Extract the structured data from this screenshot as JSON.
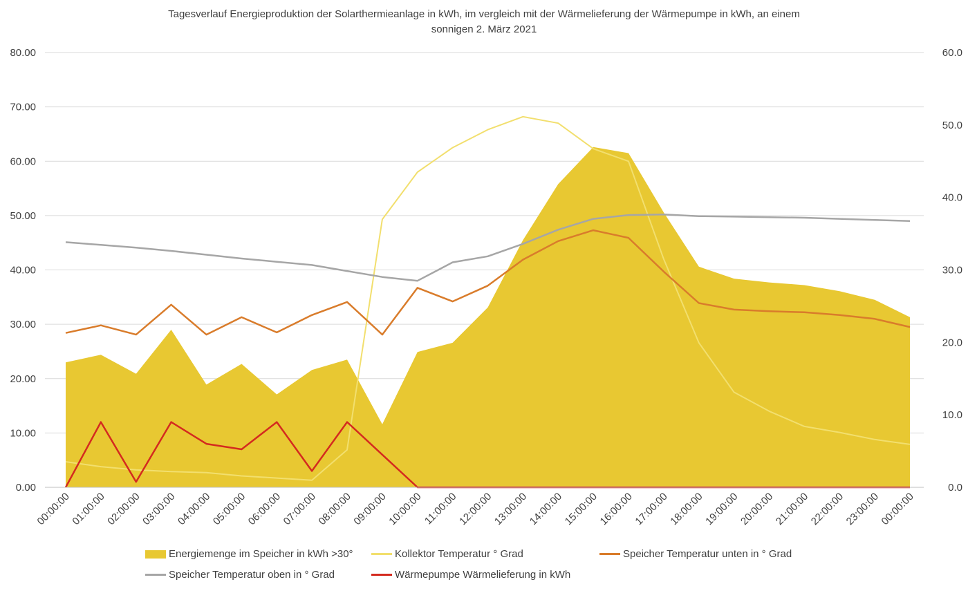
{
  "chart_data": {
    "type": "area",
    "title_lines": [
      "Tagesverlauf Energieproduktion der Solarthermieanlage in kWh, im vergleich mit der Wärmelieferung der Wärmepumpe in kWh, an einem",
      "sonnigen 2. März 2021"
    ],
    "categories": [
      "00:00:00",
      "01:00:00",
      "02:00:00",
      "03:00:00",
      "04:00:00",
      "05:00:00",
      "06:00:00",
      "07:00:00",
      "08:00:00",
      "09:00:00",
      "10:00:00",
      "11:00:00",
      "12:00:00",
      "13:00:00",
      "14:00:00",
      "15:00:00",
      "16:00:00",
      "17:00:00",
      "18:00:00",
      "19:00:00",
      "20:00:00",
      "21:00:00",
      "22:00:00",
      "23:00:00",
      "00:00:00"
    ],
    "y_left": {
      "min": 0,
      "max": 80,
      "ticks": [
        "0.00",
        "10.00",
        "20.00",
        "30.00",
        "40.00",
        "50.00",
        "60.00",
        "70.00",
        "80.00"
      ]
    },
    "y_right": {
      "min": 0,
      "max": 60,
      "ticks": [
        "0.0",
        "10.0",
        "20.0",
        "30.0",
        "40.0",
        "50.0",
        "60.0"
      ]
    },
    "grid": true,
    "legend_position": "bottom",
    "series": [
      {
        "name": "Energiemenge im Speicher in kWh >30°",
        "kind": "area",
        "axis": "left",
        "color": "#E8C832",
        "values": [
          23.0,
          24.4,
          20.9,
          29.0,
          18.9,
          22.7,
          17.1,
          21.6,
          23.5,
          11.6,
          24.9,
          26.6,
          33.1,
          45.5,
          55.8,
          62.6,
          61.5,
          50.6,
          40.6,
          38.4,
          37.7,
          37.2,
          36.1,
          34.5,
          31.3
        ]
      },
      {
        "name": "Kollektor Temperatur ° Grad",
        "kind": "line",
        "axis": "left",
        "color": "#F2DF6E",
        "values": [
          4.7,
          3.8,
          3.2,
          2.9,
          2.7,
          2.1,
          1.7,
          1.3,
          6.9,
          49.3,
          58.0,
          62.5,
          65.8,
          68.2,
          67.0,
          62.3,
          60.0,
          42.0,
          26.6,
          17.5,
          14.0,
          11.2,
          10.1,
          8.8,
          7.9
        ]
      },
      {
        "name": "Speicher Temperatur unten in ° Grad",
        "kind": "line",
        "axis": "left",
        "color": "#D97C2B",
        "values": [
          28.4,
          29.8,
          28.1,
          33.6,
          28.1,
          31.3,
          28.5,
          31.7,
          34.1,
          28.1,
          36.7,
          34.2,
          37.1,
          41.9,
          45.3,
          47.3,
          45.9,
          39.7,
          33.9,
          32.7,
          32.4,
          32.2,
          31.7,
          31.0,
          29.5
        ]
      },
      {
        "name": "Speicher Temperatur oben in ° Grad",
        "kind": "line",
        "axis": "left",
        "color": "#A6A6A6",
        "values": [
          45.1,
          44.6,
          44.1,
          43.5,
          42.8,
          42.1,
          41.5,
          40.9,
          39.8,
          38.7,
          38.0,
          41.4,
          42.5,
          44.8,
          47.4,
          49.4,
          50.1,
          50.2,
          49.9,
          49.8,
          49.7,
          49.6,
          49.4,
          49.2,
          49.0
        ]
      },
      {
        "name": "Wärmepumpe Wärmelieferung in kWh",
        "kind": "line",
        "axis": "left",
        "color": "#D42A1F",
        "values": [
          0,
          12.0,
          1.0,
          12.0,
          8.0,
          7.0,
          12.0,
          3.0,
          12.0,
          6.0,
          0,
          0,
          0,
          0,
          0,
          0,
          0,
          0,
          0,
          0,
          0,
          0,
          0,
          0,
          0
        ]
      }
    ]
  }
}
